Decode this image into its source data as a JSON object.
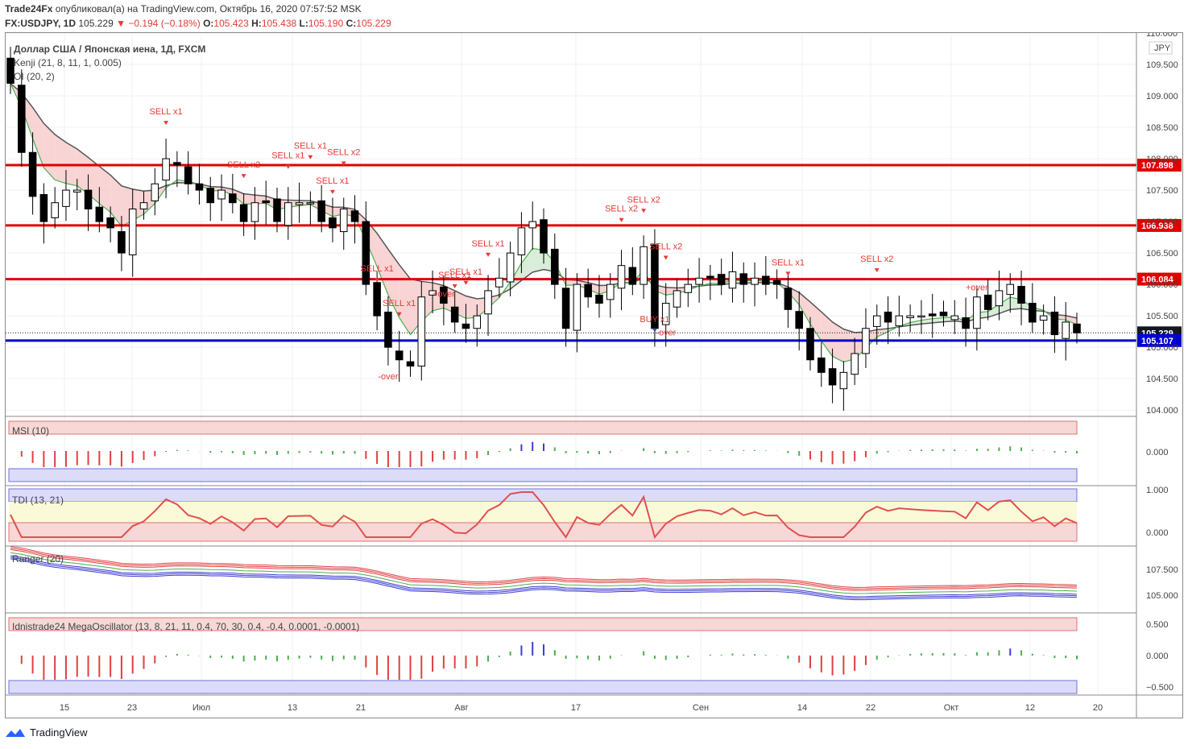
{
  "header": {
    "publisher": "Trade24Fx",
    "published_text": "опубликовал(а) на TradingView.com, Октябрь 16, 2020 07:57:52 MSK",
    "symbol": "FX:USDJPY, 1D",
    "last": "105.229",
    "change": "▼ −0.194 (−0.18%)",
    "o_label": "O:",
    "o_value": "105.423",
    "h_label": "H:",
    "h_value": "105.438",
    "l_label": "L:",
    "l_value": "105.190",
    "c_label": "C:",
    "c_value": "105.229"
  },
  "main_pane": {
    "title": "Доллар США / Японская иена, 1Д, FXCM",
    "indicator1": "Kenji (21, 8, 11, 1, 0.005)",
    "indicator2": "OI (20, 2)",
    "currency_badge": "JPY"
  },
  "pane_titles": {
    "msi": "MSI (10)",
    "tdi": "TDI (13, 21)",
    "ranger": "Ranger (20)",
    "mega": "Idnistrade24 MegaOscillator (13, 8, 21, 11, 0.4, 70, 30, 0.4, -0.4, 0.0001, -0.0001)"
  },
  "pane_ticks": {
    "msi": [
      "0.000"
    ],
    "tdi": [
      "1.000",
      "0.000"
    ],
    "ranger": [
      "107.500",
      "105.000"
    ],
    "mega": [
      "0.500",
      "0.000",
      "−0.500"
    ]
  },
  "signal_labels": [
    "SELL x1",
    "SELL x2",
    "SELL x1",
    "SELL x1",
    "SELL x1",
    "SELL x2",
    "SELL x1",
    "SELL x1",
    "SELL x1",
    "SELL x1",
    "SELL x1",
    "SELL x2",
    "SELL x2",
    "SELL x2",
    "SELL x1",
    "SELL x2",
    "-over",
    "+over",
    "BUY x1",
    "-over",
    "+over"
  ],
  "footer": {
    "brand": "TradingView"
  },
  "colors": {
    "bull": "#ffffff",
    "bear": "#000000",
    "resistance": "#e00000",
    "support": "#0000d0",
    "signal": "#e53935",
    "buy": "#3f51b5"
  },
  "chart_data": {
    "type": "candlestick",
    "title": "Доллар США / Японская иена, 1Д, FXCM",
    "ylim": [
      103.9,
      110.0
    ],
    "y_ticks": [
      "110.000",
      "109.500",
      "109.000",
      "108.500",
      "108.000",
      "107.500",
      "107.000",
      "106.500",
      "106.000",
      "105.500",
      "105.000",
      "104.500",
      "104.000"
    ],
    "x_ticks": [
      "15",
      "23",
      "Июл",
      "13",
      "21",
      "Авг",
      "17",
      "Сен",
      "14",
      "22",
      "Окт",
      "12",
      "20"
    ],
    "horizontal_levels": [
      {
        "value": 107.898,
        "label": "107.898",
        "color": "#e00000"
      },
      {
        "value": 106.938,
        "label": "106.938",
        "color": "#e00000"
      },
      {
        "value": 106.084,
        "label": "106.084",
        "color": "#e00000"
      },
      {
        "value": 105.229,
        "label": "105.229",
        "color": "#131722"
      },
      {
        "value": 105.107,
        "label": "105.107",
        "color": "#0000d0"
      }
    ],
    "close": [
      109.2,
      108.1,
      107.4,
      107.0,
      107.3,
      107.5,
      107.5,
      107.2,
      107.0,
      106.9,
      106.5,
      107.2,
      107.3,
      107.6,
      108.0,
      107.9,
      107.6,
      107.5,
      107.3,
      107.5,
      107.3,
      107.0,
      107.3,
      107.3,
      107.0,
      107.3,
      107.3,
      107.3,
      107.0,
      106.9,
      107.2,
      107.0,
      106.0,
      105.5,
      105.0,
      104.8,
      104.7,
      105.8,
      105.9,
      105.7,
      105.4,
      105.3,
      105.5,
      105.9,
      106.1,
      106.5,
      106.9,
      107.0,
      106.5,
      106.0,
      105.3,
      106.0,
      105.8,
      105.7,
      106.0,
      106.3,
      106.0,
      106.6,
      105.3,
      105.7,
      105.9,
      106.0,
      106.1,
      106.1,
      106.0,
      106.2,
      106.0,
      106.1,
      106.0,
      106.0,
      105.6,
      105.3,
      104.8,
      104.6,
      104.4,
      104.6,
      104.9,
      105.3,
      105.5,
      105.4,
      105.5,
      105.5,
      105.5,
      105.5,
      105.5,
      105.5,
      105.3,
      105.8,
      105.6,
      105.9,
      106.0,
      105.7,
      105.4,
      105.5,
      105.2,
      105.4,
      105.229
    ],
    "bands": {
      "ranger_last": 105.5
    }
  }
}
